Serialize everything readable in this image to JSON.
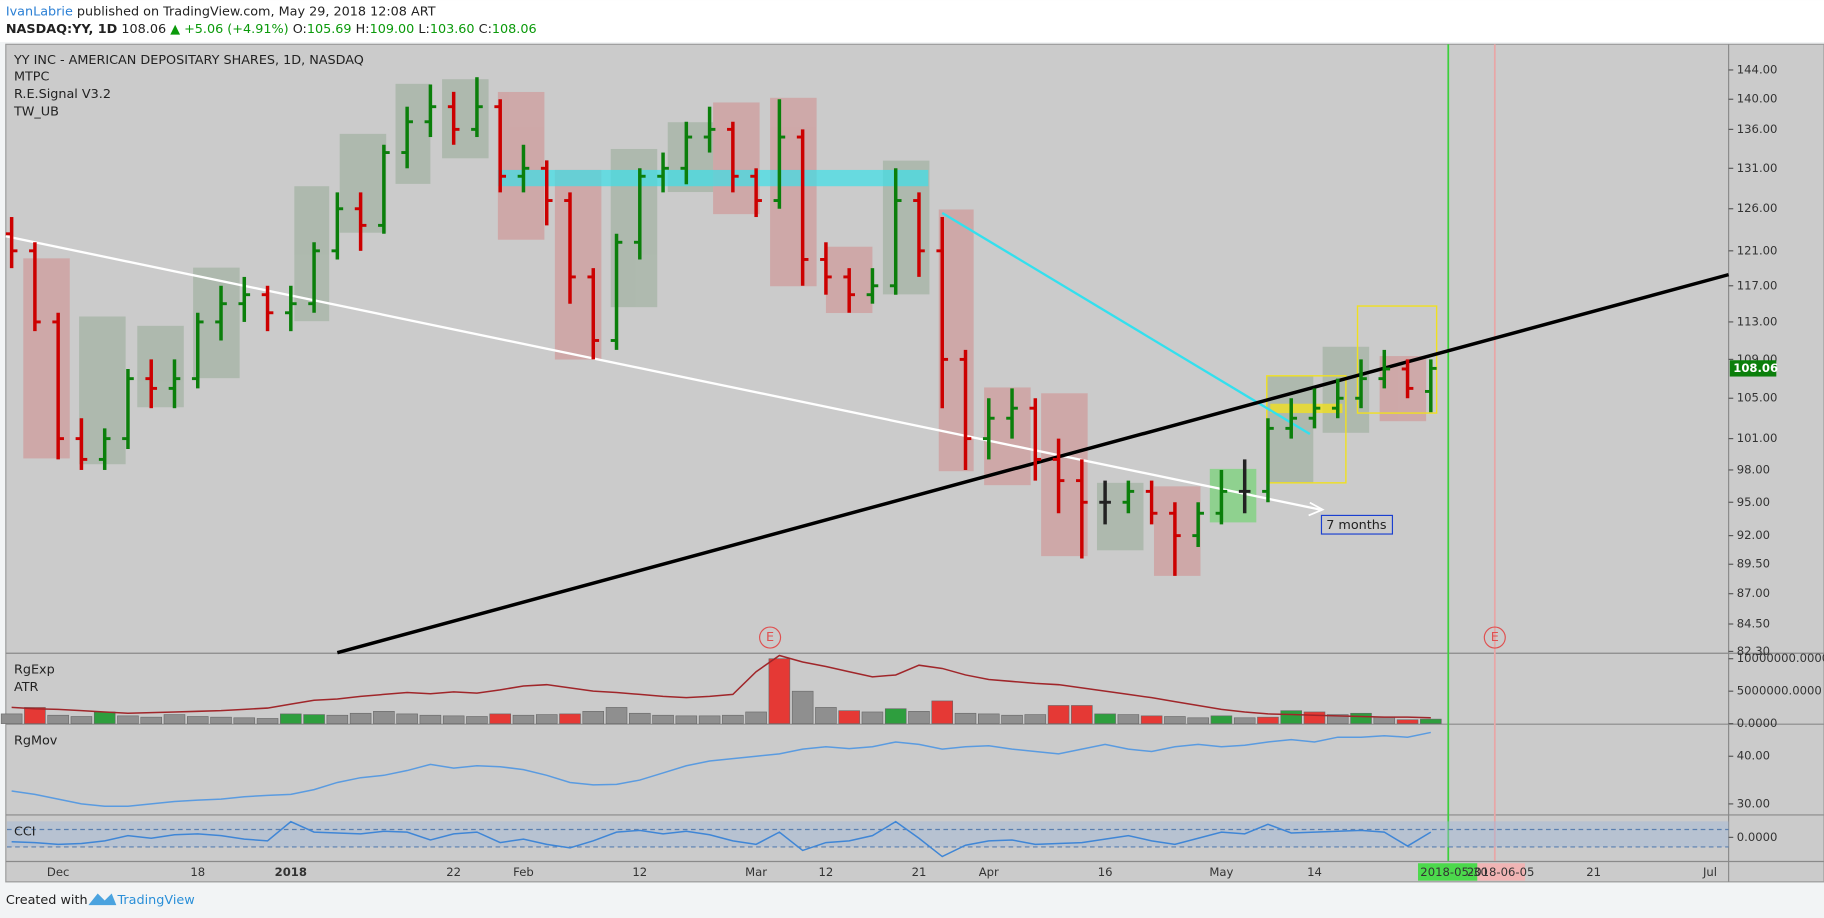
{
  "header": {
    "author": "IvanLabrie",
    "published": " published on TradingView.com, May 29, 2018 12:08 ART",
    "symbol": "NASDAQ:YY, 1D",
    "price": "108.06",
    "change": "▲ +5.06 (+4.91%)",
    "ohlc": [
      {
        "key": "O:",
        "value": "105.69"
      },
      {
        "key": "H:",
        "value": "109.00"
      },
      {
        "key": "L:",
        "value": "103.60"
      },
      {
        "key": "C:",
        "value": "108.06"
      }
    ]
  },
  "footer": {
    "created_with": "Created with",
    "brand": "TradingView"
  },
  "chart_data": [
    {
      "type": "ohlc",
      "title": "YY INC - AMERICAN DEPOSITARY SHARES, 1D, NASDAQ",
      "indicators": [
        "MTPC",
        "R.E.Signal V3.2",
        "TW_UB"
      ],
      "annotation": "7 months",
      "events": [
        "E",
        "E"
      ],
      "log_scale": true,
      "up_color": "#0b7f0b",
      "down_color": "#cc0000",
      "flat_color": "#222222",
      "categories": [
        null,
        null,
        "Dec",
        null,
        null,
        null,
        null,
        null,
        "18",
        null,
        null,
        null,
        "2018",
        null,
        null,
        null,
        null,
        null,
        null,
        "22",
        null,
        null,
        "Feb",
        null,
        null,
        null,
        null,
        "12",
        null,
        null,
        null,
        null,
        "Mar",
        null,
        null,
        "12",
        null,
        null,
        null,
        "21",
        null,
        null,
        "Apr",
        null,
        null,
        null,
        null,
        "16",
        null,
        null,
        null,
        null,
        "May",
        null,
        null,
        null,
        "14",
        null,
        null,
        null,
        null,
        null,
        "2018-05-30",
        null,
        "2018-06-05",
        null,
        null,
        null,
        "21",
        null,
        null,
        null,
        null,
        "Jul"
      ],
      "open": [
        123,
        121,
        113,
        101,
        99,
        101,
        107,
        106,
        107,
        113,
        115,
        116,
        114,
        115,
        121,
        126,
        124,
        133,
        137,
        139,
        136,
        139,
        130,
        131,
        127,
        118,
        111,
        122,
        130,
        131,
        135,
        136,
        130,
        127,
        135,
        120,
        118,
        116,
        117,
        127,
        121,
        109,
        101,
        103,
        104,
        99,
        97,
        95,
        95,
        96,
        94,
        92,
        94,
        96,
        96,
        102,
        103,
        104,
        105,
        107,
        108,
        105.69,
        null,
        null,
        null,
        null,
        null,
        null,
        null,
        null,
        null,
        null,
        null,
        null
      ],
      "high": [
        125,
        122,
        114,
        103,
        102,
        108,
        109,
        109,
        114,
        117,
        118,
        117,
        117,
        122,
        128,
        128,
        134,
        139,
        142,
        141,
        143,
        140,
        134,
        132,
        128,
        119,
        123,
        131,
        133,
        137,
        139,
        137,
        131,
        140,
        136,
        122,
        119,
        119,
        131,
        128,
        125,
        110,
        105,
        106,
        105,
        101,
        99,
        97,
        97,
        97,
        95,
        95,
        98,
        99,
        103,
        105,
        106,
        107,
        109,
        110,
        109,
        109,
        null,
        null,
        null,
        null,
        null,
        null,
        null,
        null,
        null,
        null,
        null,
        null
      ],
      "low": [
        119,
        112,
        99,
        98,
        98,
        100,
        104,
        104,
        106,
        111,
        113,
        112,
        112,
        114,
        120,
        121,
        123,
        131,
        135,
        134,
        135,
        128,
        128,
        124,
        115,
        109,
        110,
        120,
        128,
        129,
        133,
        128,
        125,
        126,
        117,
        116,
        114,
        115,
        116,
        118,
        104,
        98,
        99,
        101,
        97,
        94,
        90,
        93,
        94,
        93,
        88.5,
        91,
        93,
        94,
        95,
        101,
        102,
        103,
        104,
        106,
        105,
        103.6,
        null,
        null,
        null,
        null,
        null,
        null,
        null,
        null,
        null,
        null,
        null,
        null
      ],
      "close": [
        121,
        113,
        101,
        99,
        101,
        107,
        106,
        107,
        113,
        115,
        116,
        114,
        115,
        121,
        126,
        124,
        133,
        137,
        139,
        136,
        139,
        130,
        131,
        127,
        118,
        111,
        122,
        130,
        131,
        135,
        136,
        130,
        127,
        135,
        120,
        118,
        116,
        117,
        127,
        121,
        109,
        101,
        103,
        104,
        99,
        97,
        95,
        95,
        96,
        94,
        92,
        94,
        96,
        96,
        102,
        103,
        104,
        105,
        107,
        108,
        106,
        108.06,
        null,
        null,
        null,
        null,
        null,
        null,
        null,
        null,
        null,
        null,
        null,
        null
      ],
      "ylim": [
        82.2,
        147.6
      ],
      "yticks": [
        {
          "value": 144,
          "label": "144.00"
        },
        {
          "value": 140,
          "label": "140.00"
        },
        {
          "value": 136,
          "label": "136.00"
        },
        {
          "value": 131,
          "label": "131.00"
        },
        {
          "value": 126,
          "label": "126.00"
        },
        {
          "value": 121,
          "label": "121.00"
        },
        {
          "value": 117,
          "label": "117.00"
        },
        {
          "value": 113,
          "label": "113.00"
        },
        {
          "value": 109,
          "label": "109.00"
        },
        {
          "value": 105,
          "label": "105.00"
        },
        {
          "value": 101,
          "label": "101.00"
        },
        {
          "value": 98,
          "label": "98.00"
        },
        {
          "value": 95,
          "label": "95.00"
        },
        {
          "value": 92,
          "label": "92.00"
        },
        {
          "value": 89.5,
          "label": "89.50"
        },
        {
          "value": 87,
          "label": "87.00"
        },
        {
          "value": 84.5,
          "label": "84.50"
        },
        {
          "value": 82.3,
          "label": "82.30"
        }
      ]
    },
    {
      "type": "bar",
      "ylim": [
        0,
        10750000
      ],
      "yticks": [
        {
          "value": 10000000,
          "label": "10000000.0000"
        },
        {
          "value": 5000000,
          "label": "5000000.0000"
        },
        {
          "value": 0,
          "label": "0.0000"
        }
      ],
      "series": [
        {
          "name": "RgExp",
          "type": "bar",
          "values": [
            1500000,
            2500000,
            1300000,
            1100000,
            1800000,
            1200000,
            1000000,
            1400000,
            1100000,
            1000000,
            900000,
            800000,
            1500000,
            1400000,
            1300000,
            1600000,
            1900000,
            1500000,
            1300000,
            1200000,
            1100000,
            1500000,
            1300000,
            1400000,
            1500000,
            1900000,
            2500000,
            1600000,
            1300000,
            1200000,
            1200000,
            1300000,
            1800000,
            10000000,
            5000000,
            2500000,
            2000000,
            1800000,
            2300000,
            1900000,
            3500000,
            1600000,
            1500000,
            1300000,
            1400000,
            2800000,
            2800000,
            1500000,
            1400000,
            1200000,
            1100000,
            900000,
            1200000,
            900000,
            1000000,
            2000000,
            1800000,
            1400000,
            1600000,
            1000000,
            600000,
            700000
          ],
          "colors": [
            "#8f8f8f",
            "#e53935",
            "#8f8f8f",
            "#8f8f8f",
            "#2e9e3e",
            "#8f8f8f",
            "#8f8f8f",
            "#8f8f8f",
            "#8f8f8f",
            "#8f8f8f",
            "#8f8f8f",
            "#8f8f8f",
            "#2e9e3e",
            "#2e9e3e",
            "#8f8f8f",
            "#8f8f8f",
            "#8f8f8f",
            "#8f8f8f",
            "#8f8f8f",
            "#8f8f8f",
            "#8f8f8f",
            "#e53935",
            "#8f8f8f",
            "#8f8f8f",
            "#e53935",
            "#8f8f8f",
            "#8f8f8f",
            "#8f8f8f",
            "#8f8f8f",
            "#8f8f8f",
            "#8f8f8f",
            "#8f8f8f",
            "#8f8f8f",
            "#e53935",
            "#8f8f8f",
            "#8f8f8f",
            "#e53935",
            "#8f8f8f",
            "#2e9e3e",
            "#8f8f8f",
            "#e53935",
            "#8f8f8f",
            "#8f8f8f",
            "#8f8f8f",
            "#8f8f8f",
            "#e53935",
            "#e53935",
            "#2e9e3e",
            "#8f8f8f",
            "#e53935",
            "#8f8f8f",
            "#8f8f8f",
            "#2e9e3e",
            "#8f8f8f",
            "#e53935",
            "#2e9e3e",
            "#e53935",
            "#8f8f8f",
            "#2e9e3e",
            "#8f8f8f",
            "#e53935",
            "#2e9e3e"
          ]
        },
        {
          "name": "ATR",
          "type": "line",
          "color": "#a0262a",
          "values": [
            2500000,
            2300000,
            2200000,
            2000000,
            1800000,
            1600000,
            1700000,
            1800000,
            1900000,
            2000000,
            2200000,
            2400000,
            3000000,
            3600000,
            3800000,
            4200000,
            4500000,
            4800000,
            4600000,
            4900000,
            4700000,
            5200000,
            5800000,
            6000000,
            5500000,
            5000000,
            4800000,
            4500000,
            4200000,
            4000000,
            4200000,
            4500000,
            8000000,
            10500000,
            9500000,
            8800000,
            8000000,
            7200000,
            7500000,
            9000000,
            8500000,
            7500000,
            6800000,
            6500000,
            6200000,
            6000000,
            5500000,
            5000000,
            4500000,
            4000000,
            3400000,
            2800000,
            2200000,
            1800000,
            1500000,
            1400000,
            1300000,
            1200000,
            1100000,
            1000000,
            1000000,
            900000
          ]
        }
      ]
    },
    {
      "type": "line",
      "ylim": [
        27.8,
        46.6
      ],
      "yticks": [
        {
          "value": 40,
          "label": "40.00"
        },
        {
          "value": 30,
          "label": "30.00"
        }
      ],
      "series": [
        {
          "name": "RgMov",
          "color": "#5a9be0",
          "values": [
            32.7,
            32,
            31,
            30,
            29.5,
            29.5,
            30,
            30.5,
            30.8,
            31,
            31.5,
            31.8,
            32,
            33,
            34.5,
            35.5,
            36,
            37,
            38.3,
            37.5,
            38,
            37.8,
            37.2,
            36,
            34.5,
            34,
            34.1,
            35,
            36.5,
            38,
            39,
            39.5,
            40,
            40.5,
            41.5,
            42,
            41.6,
            42,
            43,
            42.5,
            41.5,
            42,
            42.2,
            41.5,
            41,
            40.5,
            41.5,
            42.5,
            41.5,
            41,
            42,
            42.5,
            42,
            42.3,
            43,
            43.5,
            43,
            44,
            44,
            44.3,
            44,
            45
          ]
        }
      ]
    },
    {
      "type": "line",
      "ylim": [
        -270,
        250
      ],
      "yticks": [
        {
          "value": 0,
          "label": "0.0000"
        }
      ],
      "series": [
        {
          "name": "CCI",
          "color": "#3f86d6",
          "values": [
            -50,
            -60,
            -80,
            -70,
            -40,
            20,
            -10,
            30,
            40,
            20,
            -20,
            -40,
            180,
            60,
            50,
            40,
            70,
            60,
            -30,
            40,
            60,
            -60,
            -20,
            -80,
            -120,
            -40,
            60,
            80,
            40,
            70,
            30,
            -40,
            -80,
            60,
            -150,
            -60,
            -40,
            20,
            180,
            -10,
            -220,
            -90,
            -40,
            -30,
            -80,
            -70,
            -60,
            -20,
            20,
            -40,
            -80,
            -10,
            60,
            40,
            150,
            50,
            60,
            70,
            80,
            60,
            -100,
            60
          ]
        }
      ]
    }
  ]
}
